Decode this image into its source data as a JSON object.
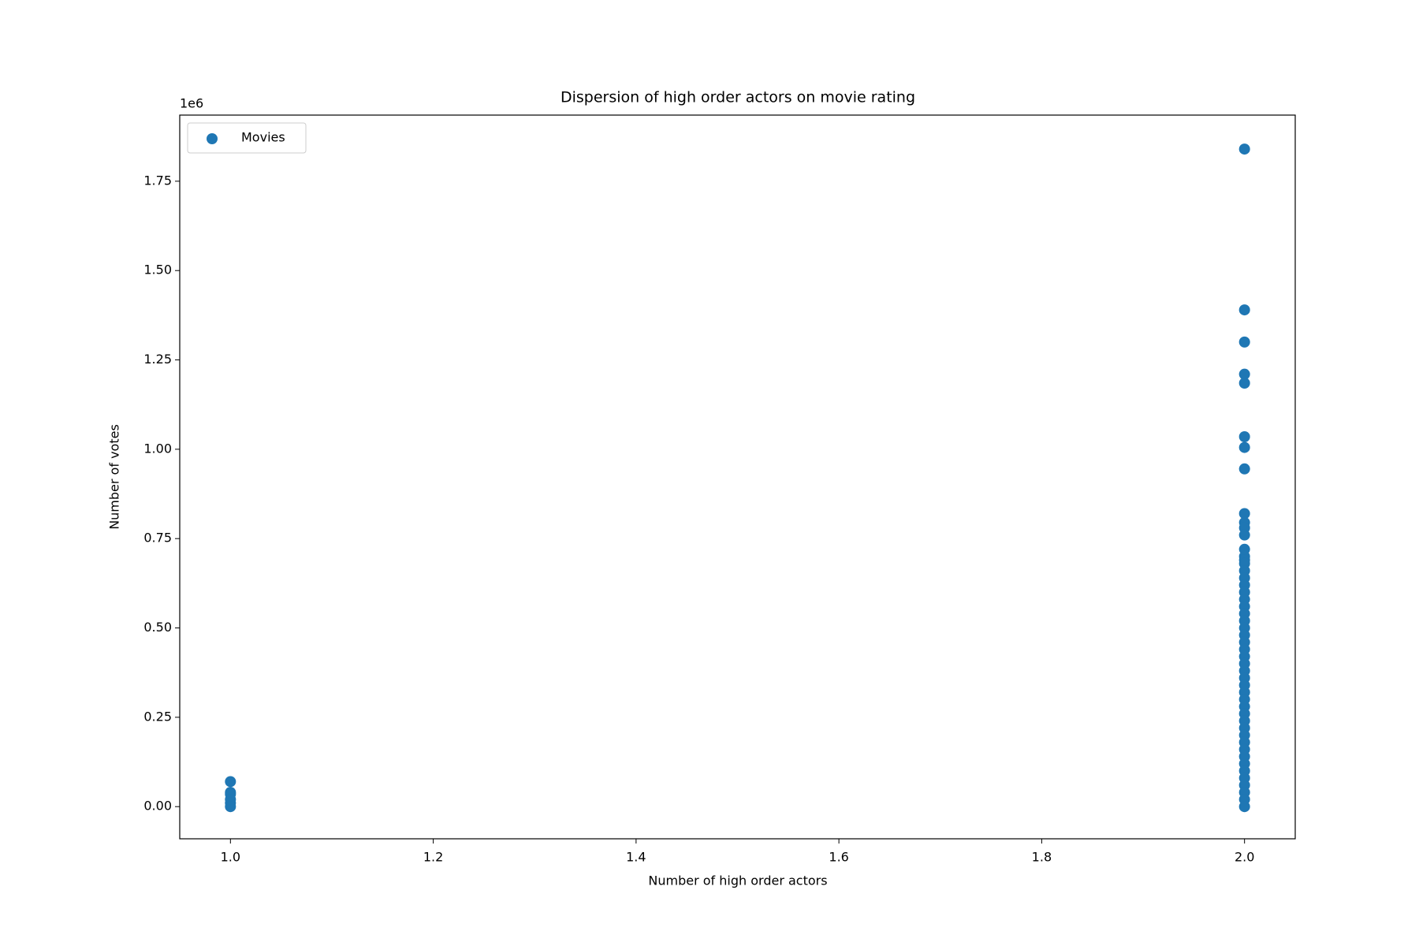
{
  "chart_data": {
    "type": "scatter",
    "title": "Dispersion of high order actors on movie rating",
    "x_label": "Number of high order actors",
    "y_label": "Number of votes",
    "y_offset_label": "1e6",
    "legend": "upper left",
    "grid": false,
    "xlim": [
      0.95,
      2.05
    ],
    "ylim": [
      -0.09,
      1.935
    ],
    "xticks": [
      {
        "value": 1,
        "label": "1.0"
      },
      1.2,
      1.4,
      1.6,
      1.8,
      {
        "value": 2,
        "label": "2.0"
      }
    ],
    "yticks": [
      {
        "value": 0,
        "label": "0.00"
      },
      0.25,
      {
        "value": 0.5,
        "label": "0.50"
      },
      0.75,
      {
        "value": 1,
        "label": "1.00"
      },
      1.25,
      {
        "value": 1.5,
        "label": "1.50"
      },
      1.75
    ],
    "series": [
      {
        "name": "Movies",
        "color": "#1f77b4",
        "x": [
          1,
          1,
          1,
          1,
          1,
          1,
          2,
          2,
          2,
          2,
          2,
          2,
          2,
          2,
          2,
          2,
          2,
          2,
          2,
          2,
          2,
          2,
          2,
          2,
          2,
          2,
          2,
          2,
          2,
          2,
          2,
          2,
          2,
          2,
          2,
          2,
          2,
          2,
          2,
          2,
          2,
          2,
          2,
          2,
          2,
          2,
          2,
          2,
          2,
          2,
          2,
          2,
          2,
          2,
          2,
          2
        ],
        "values": [
          0.07,
          0.04,
          0.035,
          0.02,
          0.01,
          0.0,
          1.84,
          1.39,
          1.3,
          1.21,
          1.185,
          1.035,
          1.005,
          0.945,
          0.82,
          0.795,
          0.78,
          0.76,
          0.72,
          0.7,
          0.69,
          0.68,
          0.66,
          0.64,
          0.62,
          0.6,
          0.58,
          0.56,
          0.54,
          0.52,
          0.5,
          0.48,
          0.46,
          0.44,
          0.42,
          0.4,
          0.38,
          0.36,
          0.34,
          0.32,
          0.3,
          0.28,
          0.26,
          0.24,
          0.22,
          0.2,
          0.18,
          0.16,
          0.14,
          0.12,
          0.1,
          0.08,
          0.06,
          0.04,
          0.02,
          0.0
        ]
      }
    ]
  }
}
